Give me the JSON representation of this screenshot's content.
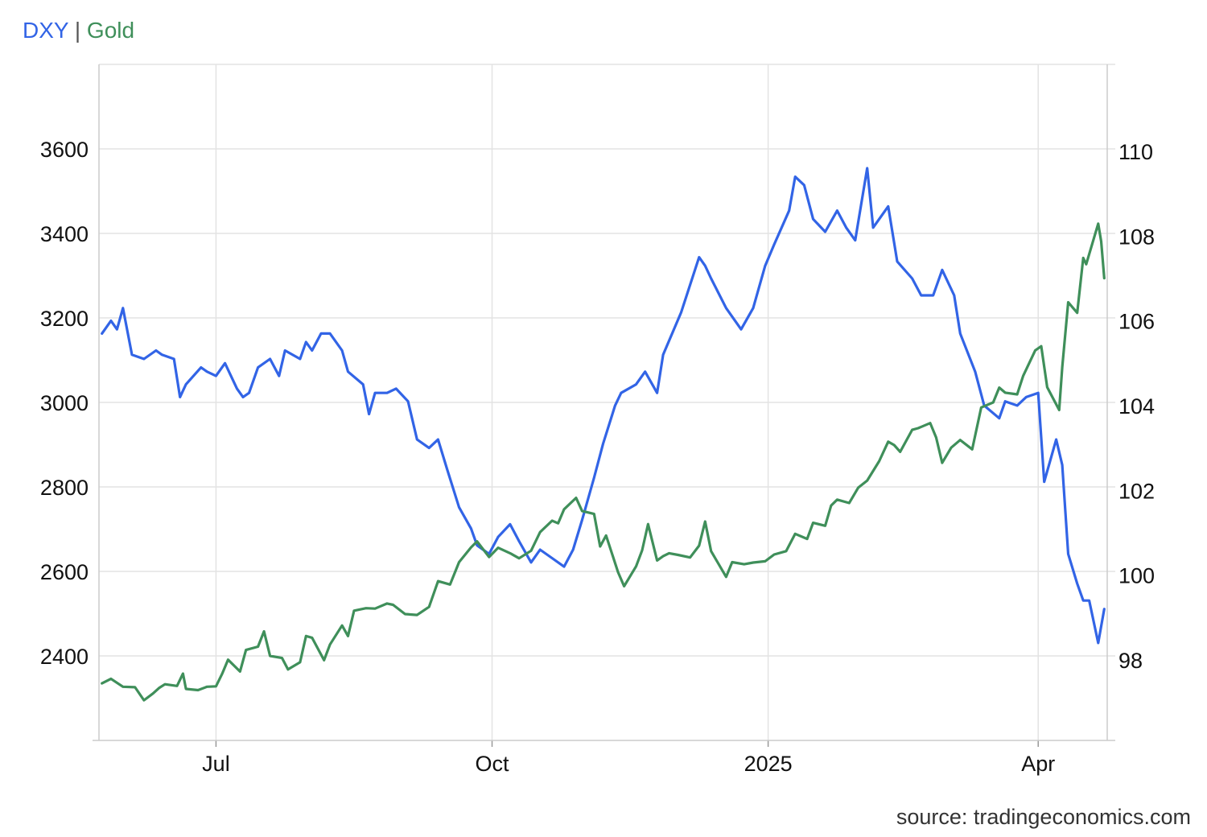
{
  "legend": {
    "dxy_label": "DXY",
    "separator": "|",
    "gold_label": "Gold"
  },
  "source": "source: tradingeconomics.com",
  "chart_data": {
    "type": "line",
    "title": "",
    "xlabel": "",
    "ylabel": "",
    "x_ticks": [
      "Jul",
      "Oct",
      "2025",
      "Apr"
    ],
    "x_tick_dates": [
      "2024-07-01",
      "2024-10-01",
      "2025-01-01",
      "2025-04-01"
    ],
    "x_range": [
      "2024-05-23",
      "2025-04-24"
    ],
    "left_axis": {
      "series": "Gold",
      "ticks": [
        2400,
        2600,
        2800,
        3000,
        3200,
        3400,
        3600
      ],
      "range": [
        2200,
        3800
      ]
    },
    "right_axis": {
      "series": "DXY",
      "ticks": [
        98,
        100,
        102,
        104,
        106,
        108,
        110
      ],
      "range": [
        96.1,
        112.05
      ]
    },
    "grid": true,
    "series": [
      {
        "name": "DXY",
        "axis": "right",
        "color": "#3264e6",
        "points": [
          [
            "2024-05-24",
            105.7
          ],
          [
            "2024-05-27",
            106.0
          ],
          [
            "2024-05-29",
            105.8
          ],
          [
            "2024-05-31",
            106.3
          ],
          [
            "2024-06-03",
            105.2
          ],
          [
            "2024-06-07",
            105.1
          ],
          [
            "2024-06-11",
            105.3
          ],
          [
            "2024-06-13",
            105.2
          ],
          [
            "2024-06-17",
            105.1
          ],
          [
            "2024-06-19",
            104.2
          ],
          [
            "2024-06-21",
            104.5
          ],
          [
            "2024-06-26",
            104.9
          ],
          [
            "2024-06-28",
            104.8
          ],
          [
            "2024-07-01",
            104.7
          ],
          [
            "2024-07-04",
            105.0
          ],
          [
            "2024-07-08",
            104.4
          ],
          [
            "2024-07-10",
            104.2
          ],
          [
            "2024-07-12",
            104.3
          ],
          [
            "2024-07-15",
            104.9
          ],
          [
            "2024-07-19",
            105.1
          ],
          [
            "2024-07-22",
            104.7
          ],
          [
            "2024-07-24",
            105.3
          ],
          [
            "2024-07-29",
            105.1
          ],
          [
            "2024-07-31",
            105.5
          ],
          [
            "2024-08-02",
            105.3
          ],
          [
            "2024-08-05",
            105.7
          ],
          [
            "2024-08-08",
            105.7
          ],
          [
            "2024-08-12",
            105.3
          ],
          [
            "2024-08-14",
            104.8
          ],
          [
            "2024-08-19",
            104.5
          ],
          [
            "2024-08-21",
            103.8
          ],
          [
            "2024-08-23",
            104.3
          ],
          [
            "2024-08-27",
            104.3
          ],
          [
            "2024-08-30",
            104.4
          ],
          [
            "2024-09-03",
            104.1
          ],
          [
            "2024-09-06",
            103.2
          ],
          [
            "2024-09-10",
            103.0
          ],
          [
            "2024-09-13",
            103.2
          ],
          [
            "2024-09-16",
            102.5
          ],
          [
            "2024-09-20",
            101.6
          ],
          [
            "2024-09-24",
            101.1
          ],
          [
            "2024-09-26",
            100.7
          ],
          [
            "2024-09-30",
            100.5
          ],
          [
            "2024-10-03",
            100.9
          ],
          [
            "2024-10-07",
            101.2
          ],
          [
            "2024-10-10",
            100.8
          ],
          [
            "2024-10-14",
            100.3
          ],
          [
            "2024-10-17",
            100.6
          ],
          [
            "2024-10-21",
            100.4
          ],
          [
            "2024-10-25",
            100.2
          ],
          [
            "2024-10-28",
            100.6
          ],
          [
            "2024-10-31",
            101.3
          ],
          [
            "2024-11-04",
            102.3
          ],
          [
            "2024-11-07",
            103.1
          ],
          [
            "2024-11-11",
            104.0
          ],
          [
            "2024-11-13",
            104.3
          ],
          [
            "2024-11-18",
            104.5
          ],
          [
            "2024-11-21",
            104.8
          ],
          [
            "2024-11-25",
            104.3
          ],
          [
            "2024-11-27",
            105.2
          ],
          [
            "2024-12-03",
            106.2
          ],
          [
            "2024-12-09",
            107.5
          ],
          [
            "2024-12-11",
            107.3
          ],
          [
            "2024-12-13",
            107.0
          ],
          [
            "2024-12-18",
            106.3
          ],
          [
            "2024-12-23",
            105.8
          ],
          [
            "2024-12-27",
            106.3
          ],
          [
            "2024-12-31",
            107.3
          ],
          [
            "2025-01-03",
            107.8
          ],
          [
            "2025-01-08",
            108.6
          ],
          [
            "2025-01-10",
            109.4
          ],
          [
            "2025-01-13",
            109.2
          ],
          [
            "2025-01-16",
            108.4
          ],
          [
            "2025-01-20",
            108.1
          ],
          [
            "2025-01-24",
            108.6
          ],
          [
            "2025-01-27",
            108.2
          ],
          [
            "2025-01-30",
            107.9
          ],
          [
            "2025-02-03",
            109.6
          ],
          [
            "2025-02-05",
            108.2
          ],
          [
            "2025-02-10",
            108.7
          ],
          [
            "2025-02-13",
            107.4
          ],
          [
            "2025-02-18",
            107.0
          ],
          [
            "2025-02-21",
            106.6
          ],
          [
            "2025-02-25",
            106.6
          ],
          [
            "2025-02-28",
            107.2
          ],
          [
            "2025-03-04",
            106.6
          ],
          [
            "2025-03-06",
            105.7
          ],
          [
            "2025-03-11",
            104.8
          ],
          [
            "2025-03-14",
            104.0
          ],
          [
            "2025-03-19",
            103.7
          ],
          [
            "2025-03-21",
            104.1
          ],
          [
            "2025-03-25",
            104.0
          ],
          [
            "2025-03-28",
            104.2
          ],
          [
            "2025-04-01",
            104.3
          ],
          [
            "2025-04-03",
            102.2
          ],
          [
            "2025-04-07",
            103.2
          ],
          [
            "2025-04-09",
            102.6
          ],
          [
            "2025-04-11",
            100.5
          ],
          [
            "2025-04-14",
            99.8
          ],
          [
            "2025-04-16",
            99.4
          ],
          [
            "2025-04-18",
            99.4
          ],
          [
            "2025-04-21",
            98.4
          ],
          [
            "2025-04-23",
            99.2
          ]
        ]
      },
      {
        "name": "Gold",
        "axis": "left",
        "color": "#3f8f5a",
        "points": [
          [
            "2024-05-24",
            2335
          ],
          [
            "2024-05-27",
            2346
          ],
          [
            "2024-05-31",
            2327
          ],
          [
            "2024-06-04",
            2326
          ],
          [
            "2024-06-07",
            2295
          ],
          [
            "2024-06-10",
            2311
          ],
          [
            "2024-06-12",
            2324
          ],
          [
            "2024-06-14",
            2333
          ],
          [
            "2024-06-18",
            2329
          ],
          [
            "2024-06-20",
            2358
          ],
          [
            "2024-06-21",
            2322
          ],
          [
            "2024-06-25",
            2319
          ],
          [
            "2024-06-28",
            2327
          ],
          [
            "2024-07-01",
            2328
          ],
          [
            "2024-07-03",
            2357
          ],
          [
            "2024-07-05",
            2391
          ],
          [
            "2024-07-09",
            2363
          ],
          [
            "2024-07-11",
            2414
          ],
          [
            "2024-07-15",
            2422
          ],
          [
            "2024-07-17",
            2458
          ],
          [
            "2024-07-19",
            2400
          ],
          [
            "2024-07-23",
            2395
          ],
          [
            "2024-07-25",
            2368
          ],
          [
            "2024-07-29",
            2385
          ],
          [
            "2024-07-31",
            2447
          ],
          [
            "2024-08-02",
            2443
          ],
          [
            "2024-08-06",
            2390
          ],
          [
            "2024-08-08",
            2427
          ],
          [
            "2024-08-12",
            2472
          ],
          [
            "2024-08-14",
            2447
          ],
          [
            "2024-08-16",
            2507
          ],
          [
            "2024-08-20",
            2513
          ],
          [
            "2024-08-23",
            2512
          ],
          [
            "2024-08-27",
            2524
          ],
          [
            "2024-08-29",
            2521
          ],
          [
            "2024-09-02",
            2499
          ],
          [
            "2024-09-06",
            2497
          ],
          [
            "2024-09-10",
            2516
          ],
          [
            "2024-09-13",
            2577
          ],
          [
            "2024-09-17",
            2569
          ],
          [
            "2024-09-20",
            2622
          ],
          [
            "2024-09-24",
            2657
          ],
          [
            "2024-09-26",
            2671
          ],
          [
            "2024-09-30",
            2634
          ],
          [
            "2024-10-03",
            2656
          ],
          [
            "2024-10-07",
            2643
          ],
          [
            "2024-10-10",
            2631
          ],
          [
            "2024-10-14",
            2649
          ],
          [
            "2024-10-17",
            2693
          ],
          [
            "2024-10-21",
            2720
          ],
          [
            "2024-10-23",
            2714
          ],
          [
            "2024-10-25",
            2747
          ],
          [
            "2024-10-29",
            2774
          ],
          [
            "2024-10-31",
            2743
          ],
          [
            "2024-11-04",
            2736
          ],
          [
            "2024-11-06",
            2659
          ],
          [
            "2024-11-08",
            2685
          ],
          [
            "2024-11-12",
            2598
          ],
          [
            "2024-11-14",
            2565
          ],
          [
            "2024-11-18",
            2612
          ],
          [
            "2024-11-20",
            2650
          ],
          [
            "2024-11-22",
            2712
          ],
          [
            "2024-11-25",
            2626
          ],
          [
            "2024-11-27",
            2636
          ],
          [
            "2024-11-29",
            2643
          ],
          [
            "2024-12-02",
            2639
          ],
          [
            "2024-12-06",
            2633
          ],
          [
            "2024-12-09",
            2661
          ],
          [
            "2024-12-11",
            2718
          ],
          [
            "2024-12-13",
            2648
          ],
          [
            "2024-12-18",
            2587
          ],
          [
            "2024-12-20",
            2622
          ],
          [
            "2024-12-24",
            2617
          ],
          [
            "2024-12-27",
            2621
          ],
          [
            "2024-12-31",
            2624
          ],
          [
            "2025-01-03",
            2640
          ],
          [
            "2025-01-07",
            2648
          ],
          [
            "2025-01-10",
            2689
          ],
          [
            "2025-01-14",
            2677
          ],
          [
            "2025-01-16",
            2715
          ],
          [
            "2025-01-20",
            2708
          ],
          [
            "2025-01-22",
            2756
          ],
          [
            "2025-01-24",
            2770
          ],
          [
            "2025-01-28",
            2762
          ],
          [
            "2025-01-31",
            2798
          ],
          [
            "2025-02-03",
            2815
          ],
          [
            "2025-02-07",
            2861
          ],
          [
            "2025-02-10",
            2907
          ],
          [
            "2025-02-12",
            2899
          ],
          [
            "2025-02-14",
            2883
          ],
          [
            "2025-02-18",
            2935
          ],
          [
            "2025-02-20",
            2939
          ],
          [
            "2025-02-24",
            2951
          ],
          [
            "2025-02-26",
            2917
          ],
          [
            "2025-02-28",
            2857
          ],
          [
            "2025-03-03",
            2893
          ],
          [
            "2025-03-06",
            2911
          ],
          [
            "2025-03-10",
            2889
          ],
          [
            "2025-03-13",
            2988
          ],
          [
            "2025-03-17",
            3000
          ],
          [
            "2025-03-19",
            3035
          ],
          [
            "2025-03-21",
            3023
          ],
          [
            "2025-03-25",
            3019
          ],
          [
            "2025-03-27",
            3063
          ],
          [
            "2025-03-31",
            3123
          ],
          [
            "2025-04-02",
            3133
          ],
          [
            "2025-04-04",
            3036
          ],
          [
            "2025-04-08",
            2982
          ],
          [
            "2025-04-09",
            3083
          ],
          [
            "2025-04-11",
            3237
          ],
          [
            "2025-04-14",
            3212
          ],
          [
            "2025-04-16",
            3342
          ],
          [
            "2025-04-17",
            3327
          ],
          [
            "2025-04-21",
            3423
          ],
          [
            "2025-04-22",
            3381
          ],
          [
            "2025-04-23",
            3294
          ]
        ]
      }
    ]
  }
}
